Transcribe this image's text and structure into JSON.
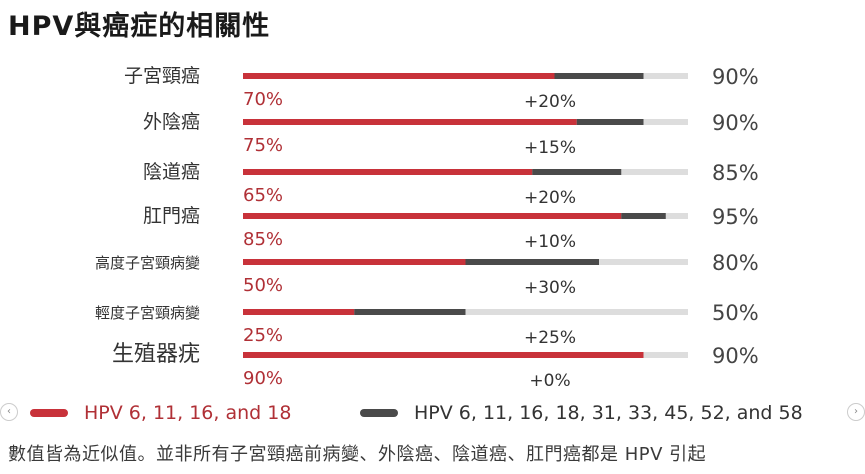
{
  "title": "HPV與癌症的相關性",
  "chart_data": {
    "type": "bar",
    "orientation": "horizontal",
    "stacked": true,
    "xlim": [
      0,
      100
    ],
    "categories": [
      "子宮頸癌",
      "外陰癌",
      "陰道癌",
      "肛門癌",
      "高度子宮頸病變",
      "輕度子宮頸病變",
      "生殖器疣"
    ],
    "series": [
      {
        "name": "HPV 6, 11, 16, and 18",
        "color": "#c8323a",
        "values": [
          70,
          75,
          65,
          85,
          50,
          25,
          90
        ]
      },
      {
        "name": "HPV 6, 11, 16, 18, 31, 33, 45, 52, and 58",
        "color": "#4a4a4a",
        "values": [
          20,
          15,
          20,
          10,
          30,
          25,
          0
        ]
      }
    ],
    "base_labels": [
      "70%",
      "75%",
      "65%",
      "85%",
      "50%",
      "25%",
      "90%"
    ],
    "add_labels": [
      "+20%",
      "+15%",
      "+20%",
      "+10%",
      "+30%",
      "+25%",
      "+0%"
    ],
    "total_labels": [
      "90%",
      "90%",
      "85%",
      "95%",
      "80%",
      "50%",
      "90%"
    ],
    "track_color": "#dddddd"
  },
  "legend": [
    {
      "label": "HPV 6, 11, 16, and 18",
      "color": "#c8323a",
      "text_color": "#b03036"
    },
    {
      "label": "HPV 6, 11, 16, 18, 31, 33, 45, 52, and 58",
      "color": "#4a4a4a",
      "text_color": "#333333"
    }
  ],
  "footnote": "數值皆為近似值。並非所有子宮頸癌前病變、外陰癌、陰道癌、肛門癌都是 HPV 引起",
  "nav": {
    "prev_icon": "‹",
    "next_icon": "›"
  }
}
